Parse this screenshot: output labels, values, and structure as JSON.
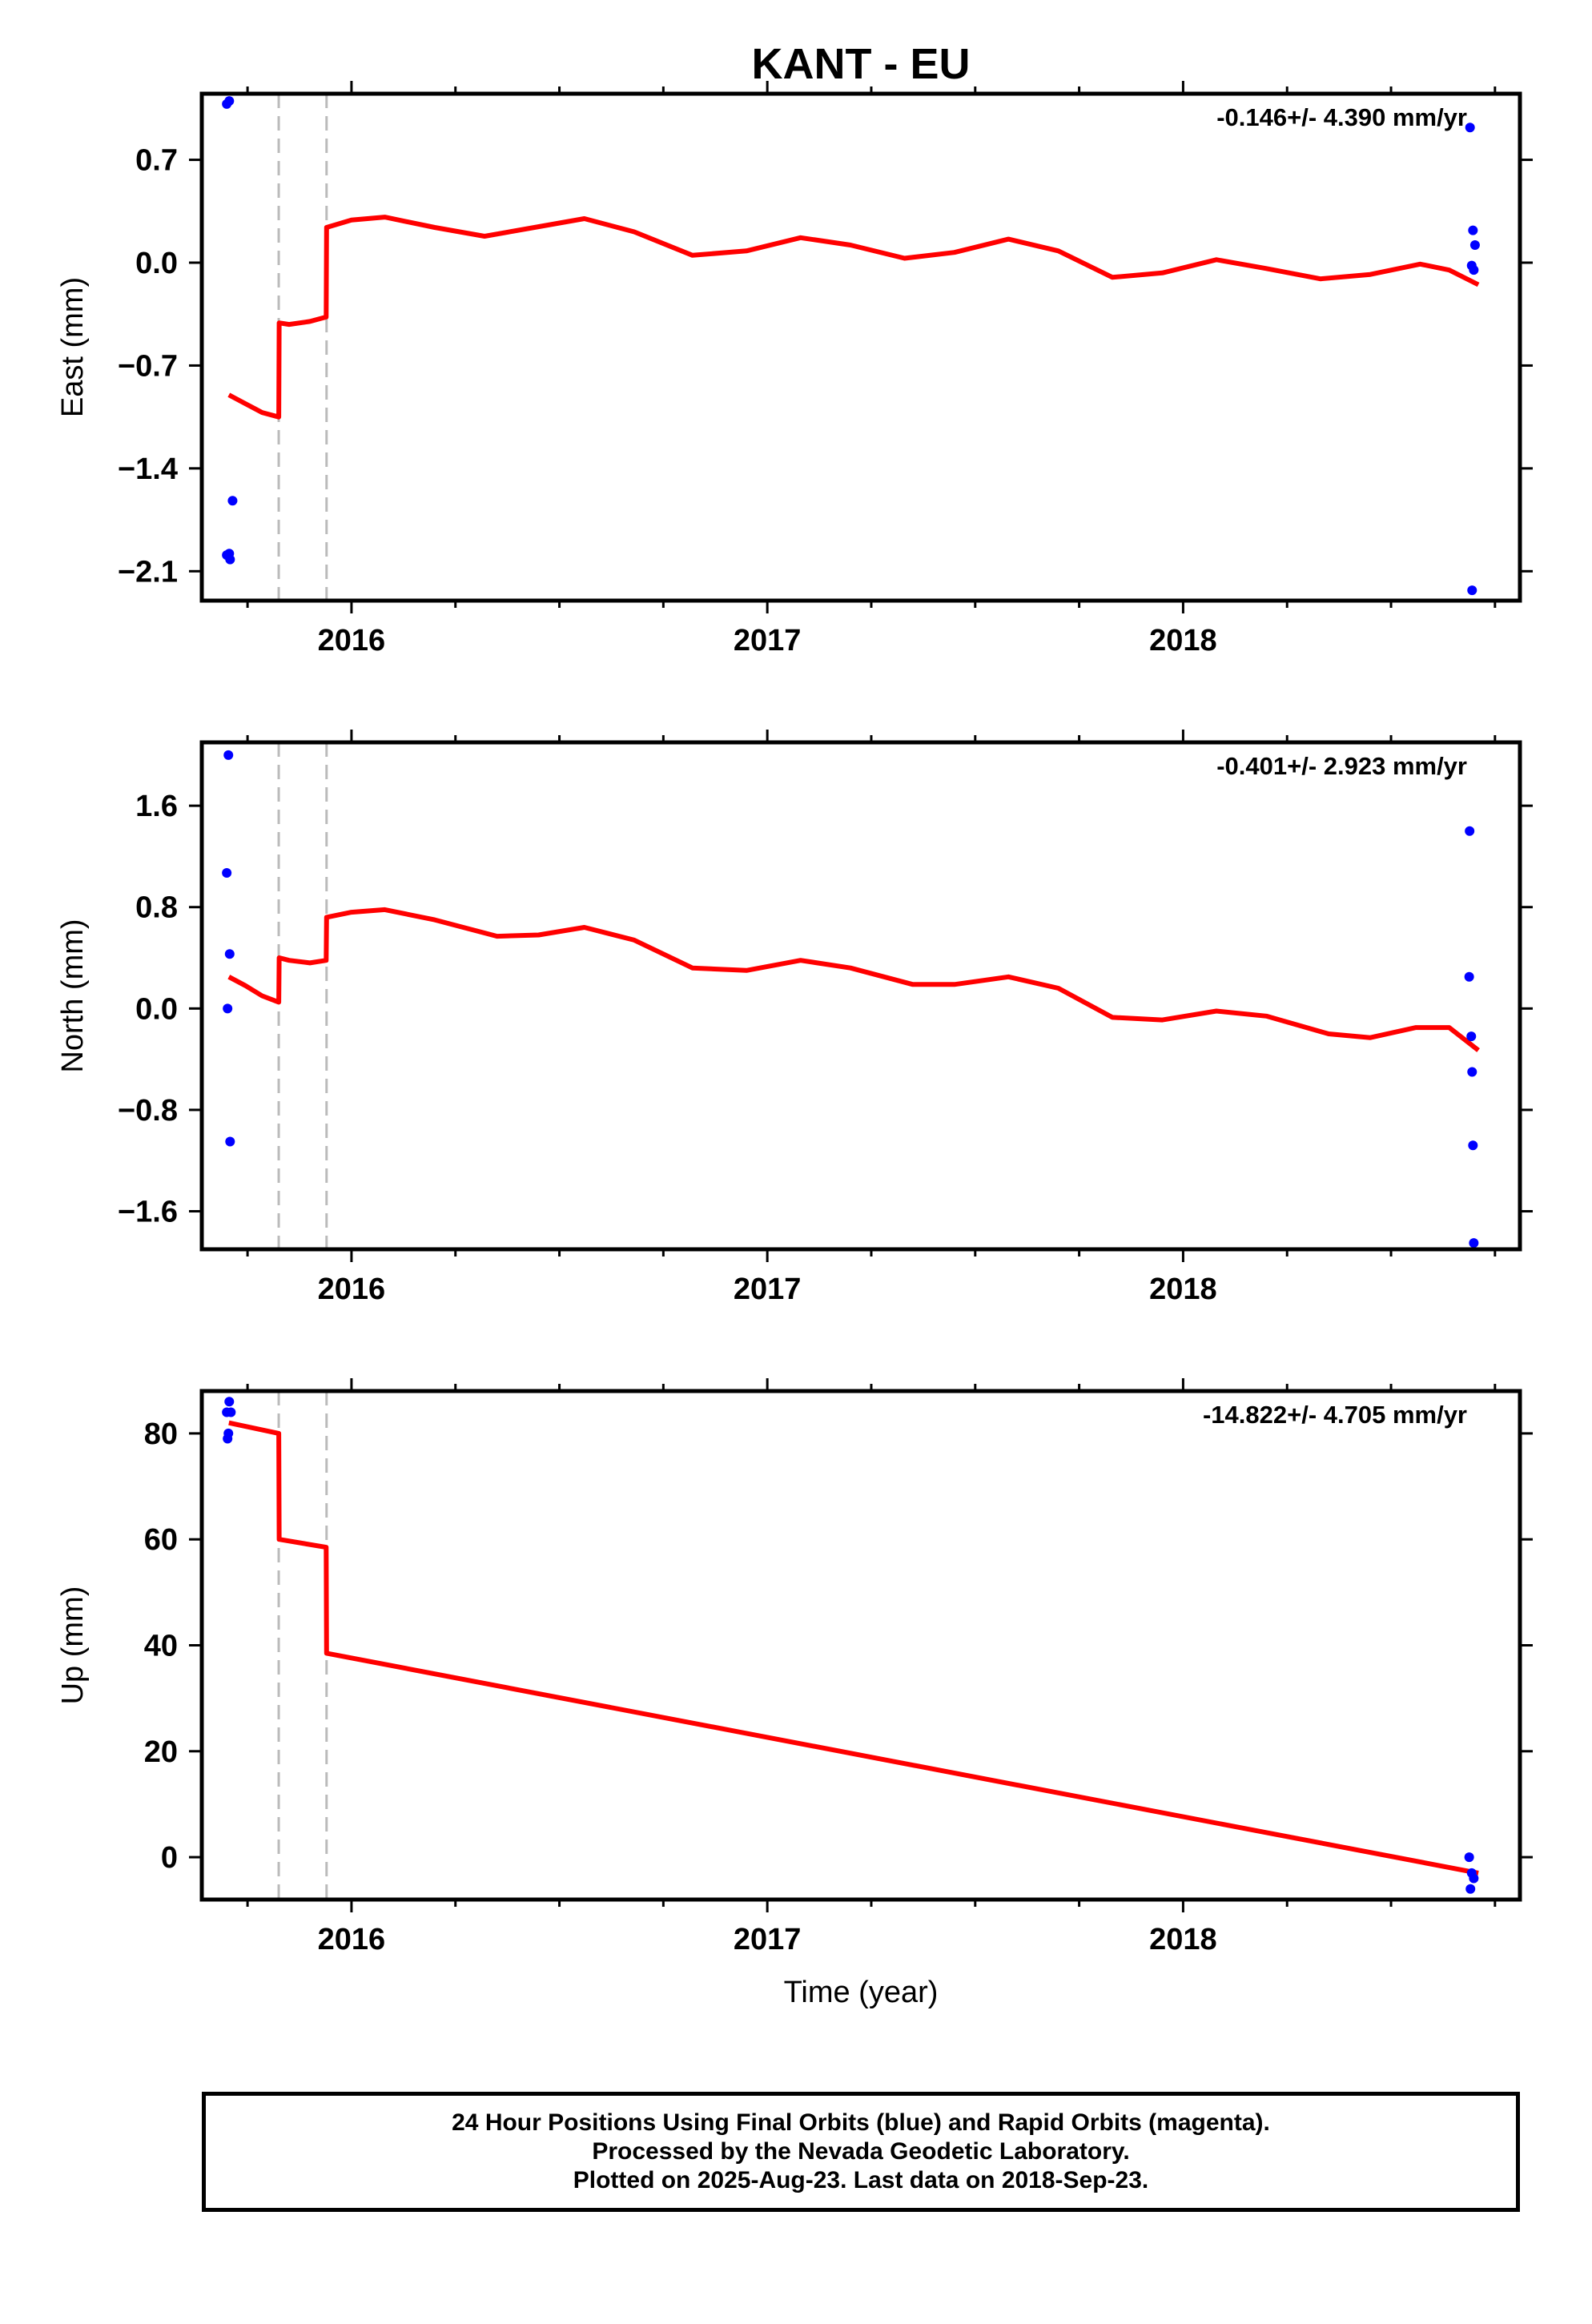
{
  "title": "KANT - EU",
  "colors": {
    "model": "#ff0000",
    "final": "#0000ff",
    "vline": "#bbbbbb",
    "frame": "#000000"
  },
  "xlabel": "Time (year)",
  "caption": {
    "line1": "24 Hour Positions Using Final Orbits (blue) and Rapid Orbits (magenta).",
    "line2": "Processed by the Nevada Geodetic Laboratory.",
    "line3": "Plotted on 2025-Aug-23. Last data on 2018-Sep-23."
  },
  "chart_data": [
    {
      "type": "scatter",
      "panel": "east",
      "ylabel": "East (mm)",
      "rate_label": "-0.146+/- 4.390 mm/yr",
      "xlim": [
        2015.64,
        2018.81
      ],
      "ylim": [
        -2.3,
        1.15
      ],
      "xticks": [
        2016,
        2017,
        2018
      ],
      "yticks": [
        -2.1,
        -1.4,
        -0.7,
        0.0,
        0.7
      ],
      "ytick_labels": [
        "−2.1",
        "−1.4",
        "−0.7",
        "0.0",
        "0.7"
      ],
      "offsets": [
        2015.825,
        2015.94
      ],
      "model": {
        "name": "model",
        "x": [
          2015.705,
          2015.745,
          2015.785,
          2015.825,
          2015.826,
          2015.85,
          2015.9,
          2015.939,
          2015.94,
          2016.0,
          2016.08,
          2016.2,
          2016.32,
          2016.44,
          2016.56,
          2016.68,
          2016.82,
          2016.95,
          2017.08,
          2017.2,
          2017.33,
          2017.45,
          2017.58,
          2017.7,
          2017.83,
          2017.95,
          2018.08,
          2018.2,
          2018.33,
          2018.45,
          2018.57,
          2018.64,
          2018.71
        ],
        "y": [
          -0.9,
          -0.96,
          -1.02,
          -1.05,
          -0.41,
          -0.42,
          -0.4,
          -0.37,
          0.24,
          0.29,
          0.31,
          0.24,
          0.18,
          0.24,
          0.3,
          0.21,
          0.05,
          0.08,
          0.17,
          0.12,
          0.03,
          0.07,
          0.16,
          0.08,
          -0.1,
          -0.07,
          0.02,
          -0.04,
          -0.11,
          -0.08,
          -0.01,
          -0.05,
          -0.15
        ]
      },
      "final": {
        "name": "Final Orbits",
        "x": [
          2015.7,
          2015.706,
          2015.708,
          2015.714,
          2015.7,
          2015.706,
          2018.69,
          2018.697,
          2018.702,
          2018.694,
          2018.699,
          2018.695
        ],
        "y": [
          1.08,
          1.1,
          -2.02,
          -1.62,
          -1.99,
          -1.98,
          0.92,
          0.22,
          0.12,
          -0.02,
          -0.05,
          -2.23
        ]
      }
    },
    {
      "type": "scatter",
      "panel": "north",
      "ylabel": "North (mm)",
      "rate_label": "-0.401+/- 2.923 mm/yr",
      "xlim": [
        2015.64,
        2018.81
      ],
      "ylim": [
        -1.9,
        2.1
      ],
      "xticks": [
        2016,
        2017,
        2018
      ],
      "yticks": [
        -1.6,
        -0.8,
        0.0,
        0.8,
        1.6
      ],
      "ytick_labels": [
        "−1.6",
        "−0.8",
        "0.0",
        "0.8",
        "1.6"
      ],
      "offsets": [
        2015.825,
        2015.94
      ],
      "model": {
        "name": "model",
        "x": [
          2015.705,
          2015.745,
          2015.785,
          2015.825,
          2015.826,
          2015.85,
          2015.9,
          2015.939,
          2015.94,
          2016.0,
          2016.08,
          2016.2,
          2016.35,
          2016.45,
          2016.56,
          2016.68,
          2016.82,
          2016.95,
          2017.08,
          2017.2,
          2017.35,
          2017.45,
          2017.58,
          2017.7,
          2017.83,
          2017.95,
          2018.08,
          2018.2,
          2018.35,
          2018.45,
          2018.56,
          2018.64,
          2018.71
        ],
        "y": [
          0.25,
          0.18,
          0.1,
          0.05,
          0.4,
          0.38,
          0.36,
          0.38,
          0.72,
          0.76,
          0.78,
          0.7,
          0.57,
          0.58,
          0.64,
          0.54,
          0.32,
          0.3,
          0.38,
          0.32,
          0.19,
          0.19,
          0.25,
          0.16,
          -0.07,
          -0.09,
          -0.02,
          -0.06,
          -0.2,
          -0.23,
          -0.15,
          -0.15,
          -0.33
        ]
      },
      "final": {
        "name": "Final Orbits",
        "x": [
          2015.704,
          2015.7,
          2015.707,
          2015.702,
          2015.708,
          2018.689,
          2018.688,
          2018.693,
          2018.695,
          2018.697,
          2018.699
        ],
        "y": [
          2.0,
          1.07,
          0.43,
          0.0,
          -1.05,
          1.4,
          0.25,
          -0.22,
          -0.5,
          -1.08,
          -1.85
        ]
      }
    },
    {
      "type": "scatter",
      "panel": "up",
      "ylabel": "Up (mm)",
      "rate_label": "-14.822+/- 4.705 mm/yr",
      "xlim": [
        2015.64,
        2018.81
      ],
      "ylim": [
        -8,
        88
      ],
      "xticks": [
        2016,
        2017,
        2018
      ],
      "yticks": [
        0,
        20,
        40,
        60,
        80
      ],
      "ytick_labels": [
        "0",
        "20",
        "40",
        "60",
        "80"
      ],
      "offsets": [
        2015.825,
        2015.94
      ],
      "model": {
        "name": "model",
        "x": [
          2015.705,
          2015.825,
          2015.826,
          2015.939,
          2015.94,
          2018.71
        ],
        "y": [
          82,
          80,
          60,
          58.5,
          38.5,
          -3
        ]
      },
      "final": {
        "name": "Final Orbits",
        "x": [
          2015.7,
          2015.706,
          2015.71,
          2015.704,
          2015.702,
          2018.688,
          2018.694,
          2018.699,
          2018.691
        ],
        "y": [
          84,
          86,
          84,
          80,
          79,
          0,
          -3,
          -4,
          -6
        ]
      }
    }
  ]
}
